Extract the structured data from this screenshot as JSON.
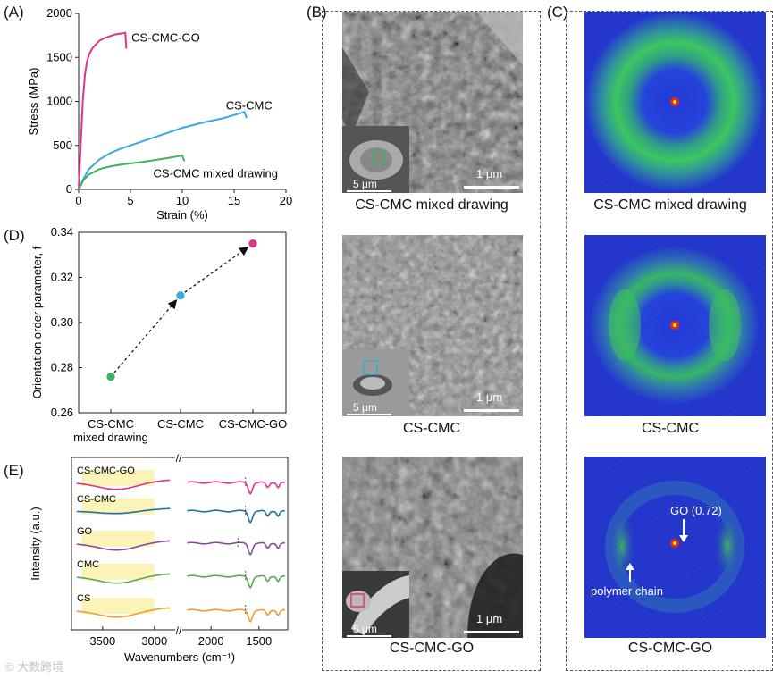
{
  "panels": {
    "A": "(A)",
    "B": "(B)",
    "C": "(C)",
    "D": "(D)",
    "E": "(E)"
  },
  "chart_data": [
    {
      "panel": "A",
      "type": "line",
      "xlabel": "Strain (%)",
      "ylabel": "Stress (MPa)",
      "xlim": [
        0,
        20
      ],
      "ylim": [
        0,
        2000
      ],
      "xticks": [
        0,
        5,
        10,
        15,
        20
      ],
      "yticks": [
        0,
        500,
        1000,
        1500,
        2000
      ],
      "series": [
        {
          "name": "CS-CMC-GO",
          "color": "#e0338a",
          "x": [
            0,
            0.2,
            0.4,
            0.6,
            0.8,
            1.0,
            1.3,
            1.6,
            2.0,
            2.5,
            3.0,
            3.5,
            4.0,
            4.5,
            4.6
          ],
          "y": [
            0,
            500,
            1000,
            1300,
            1450,
            1530,
            1600,
            1640,
            1690,
            1720,
            1740,
            1760,
            1770,
            1780,
            1600
          ]
        },
        {
          "name": "CS-CMC",
          "color": "#3aaad9",
          "x": [
            0,
            0.5,
            1,
            2,
            3,
            4,
            6,
            8,
            10,
            12,
            14,
            16,
            16.2
          ],
          "y": [
            0,
            130,
            230,
            340,
            410,
            460,
            540,
            620,
            700,
            760,
            810,
            880,
            810
          ]
        },
        {
          "name": "CS-CMC mixed drawing",
          "color": "#3fb265",
          "x": [
            0,
            0.5,
            1,
            2,
            3,
            4,
            6,
            8,
            10,
            10.2
          ],
          "y": [
            0,
            110,
            170,
            230,
            260,
            280,
            310,
            345,
            385,
            320
          ]
        }
      ]
    },
    {
      "panel": "D",
      "type": "scatter",
      "ylabel": "Orientation order parameter, f",
      "ylim": [
        0.26,
        0.34
      ],
      "yticks": [
        0.26,
        0.28,
        0.3,
        0.32,
        0.34
      ],
      "ytick_labels": [
        "0.26",
        "0.28",
        "0.30",
        "0.32",
        "0.34"
      ],
      "categories": [
        "CS-CMC mixed drawing",
        "CS-CMC",
        "CS-CMC-GO"
      ],
      "category_lines": [
        [
          "CS-CMC",
          "mixed drawing"
        ],
        [
          "CS-CMC"
        ],
        [
          "CS-CMC-GO"
        ]
      ],
      "values": [
        0.276,
        0.312,
        0.335
      ],
      "colors": [
        "#3fb265",
        "#3aaad9",
        "#e0338a"
      ]
    },
    {
      "panel": "E",
      "type": "line",
      "xlabel": "Wavenumbers (cm⁻¹)",
      "ylabel": "Intensity (a.u.)",
      "xticks": [
        3500,
        3000,
        2000,
        1500
      ],
      "break_mark": "//",
      "series": [
        {
          "name": "CS-CMC-GO",
          "color": "#e0338a"
        },
        {
          "name": "CS-CMC",
          "color": "#1f6fa8"
        },
        {
          "name": "GO",
          "color": "#8a4a9a"
        },
        {
          "name": "CMC",
          "color": "#5aa852"
        },
        {
          "name": "CS",
          "color": "#f29a2e"
        }
      ],
      "highlight_color": "#fbf3b8"
    }
  ],
  "panel_b": {
    "captions": [
      "CS-CMC mixed drawing",
      "CS-CMC",
      "CS-CMC-GO"
    ],
    "scale_main": "1 μm",
    "scale_inset": "5 μm",
    "inset_box_colors": [
      "#3fb265",
      "#3aaad9",
      "#e0338a"
    ]
  },
  "panel_c": {
    "captions": [
      "CS-CMC mixed drawing",
      "CS-CMC",
      "CS-CMC-GO"
    ],
    "annotation_go": "GO (0.72)",
    "annotation_polymer": "polymer chain"
  },
  "watermark": "© 大数跨境"
}
